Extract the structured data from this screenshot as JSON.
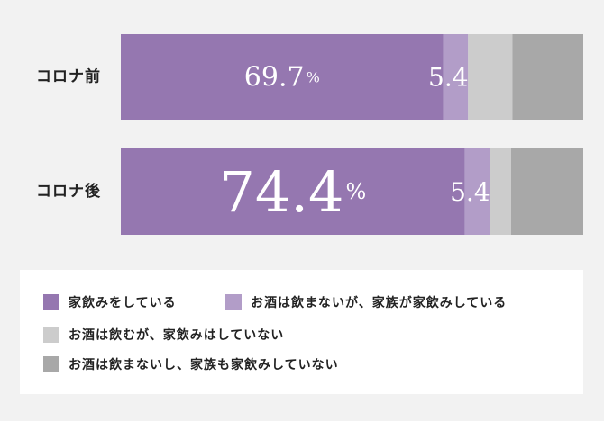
{
  "chart_data": {
    "type": "bar",
    "orientation": "horizontal",
    "stacked": true,
    "normalized_to": 100,
    "categories": [
      "コロナ前",
      "コロナ後"
    ],
    "series": [
      {
        "name": "家飲みをしている",
        "color": "#9577b0",
        "values": [
          69.7,
          74.4
        ],
        "labels": [
          "69.7",
          "74.4"
        ]
      },
      {
        "name": "お酒は飲まないが、家族が家飲みしている",
        "color": "#b29dc8",
        "values": [
          5.4,
          5.4
        ],
        "labels": [
          "5.4",
          "5.4"
        ]
      },
      {
        "name": "お酒は飲むが、家飲みはしていない",
        "color": "#cccccc",
        "values": [
          9.6,
          4.6
        ],
        "labels": [
          "",
          ""
        ]
      },
      {
        "name": "お酒は飲まないし、家族も家飲みしていない",
        "color": "#a8a8a8",
        "values": [
          15.3,
          15.6
        ],
        "labels": [
          "",
          ""
        ]
      }
    ],
    "value_unit": "%",
    "legend_position": "bottom"
  }
}
